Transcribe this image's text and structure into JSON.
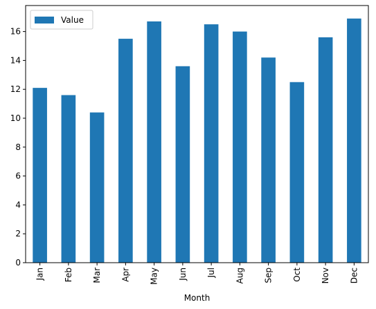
{
  "chart_data": {
    "type": "bar",
    "title": "",
    "xlabel": "Month",
    "ylabel": "",
    "categories": [
      "Jan",
      "Feb",
      "Mar",
      "Apr",
      "May",
      "Jun",
      "Jul",
      "Aug",
      "Sep",
      "Oct",
      "Nov",
      "Dec"
    ],
    "series": [
      {
        "name": "Value",
        "color": "#1f77b4",
        "values": [
          12.1,
          11.6,
          10.4,
          15.5,
          16.7,
          13.6,
          16.5,
          16.0,
          14.2,
          12.5,
          15.6,
          16.9
        ]
      }
    ],
    "ylim": [
      0,
      17.8
    ],
    "yticks": [
      0,
      2,
      4,
      6,
      8,
      10,
      12,
      14,
      16
    ],
    "grid": false,
    "legend": "top-left"
  }
}
